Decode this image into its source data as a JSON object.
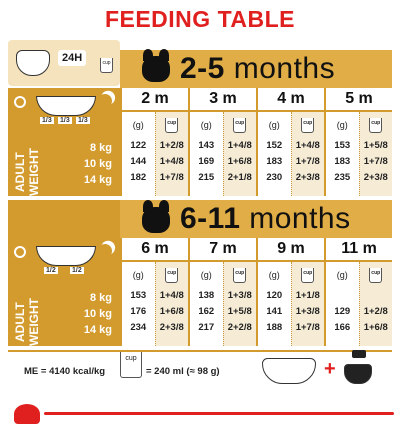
{
  "title": "FEEDING TABLE",
  "top_box": {
    "label": "24H",
    "cup_label": "cup"
  },
  "colors": {
    "accent": "#e0201f",
    "gold": "#d39b2e",
    "band": "#e0ad47",
    "cup_col": "#f6ecd6"
  },
  "section1": {
    "range": "2-5",
    "unit": "months",
    "fractions": [
      "1/3",
      "1/3",
      "1/3"
    ],
    "side_label": [
      "ADULT",
      "WEIGHT"
    ],
    "weights": [
      "8 kg",
      "10 kg",
      "14 kg"
    ],
    "ages": [
      "2 m",
      "3 m",
      "4 m",
      "5 m"
    ],
    "unit_g": "(g)",
    "cup_label": "cup",
    "grams": [
      [
        "122",
        "144",
        "182"
      ],
      [
        "143",
        "169",
        "215"
      ],
      [
        "152",
        "183",
        "230"
      ],
      [
        "153",
        "183",
        "235"
      ]
    ],
    "cups": [
      [
        "1+2/8",
        "1+4/8",
        "1+7/8"
      ],
      [
        "1+4/8",
        "1+6/8",
        "2+1/8"
      ],
      [
        "1+4/8",
        "1+7/8",
        "2+3/8"
      ],
      [
        "1+5/8",
        "1+7/8",
        "2+3/8"
      ]
    ]
  },
  "section2": {
    "range": "6-11",
    "unit": "months",
    "fractions": [
      "1/2",
      "1/2"
    ],
    "side_label": [
      "ADULT",
      "WEIGHT"
    ],
    "weights": [
      "8 kg",
      "10 kg",
      "14 kg"
    ],
    "ages": [
      "6 m",
      "7 m",
      "9 m",
      "11 m"
    ],
    "unit_g": "(g)",
    "cup_label": "cup",
    "grams": [
      [
        "153",
        "176",
        "234"
      ],
      [
        "138",
        "162",
        "217"
      ],
      [
        "120",
        "141",
        "188"
      ],
      [
        "",
        "129",
        "166"
      ]
    ],
    "cups": [
      [
        "1+4/8",
        "1+6/8",
        "2+3/8"
      ],
      [
        "1+3/8",
        "1+5/8",
        "2+2/8"
      ],
      [
        "1+1/8",
        "1+3/8",
        "1+7/8"
      ],
      [
        "",
        "1+2/8",
        "1+6/8"
      ]
    ]
  },
  "footer": {
    "me": "ME = 4140 kcal/kg",
    "cup_label": "cup",
    "conversion": "= 240 ml (≈ 98 g)",
    "plus": "+"
  }
}
